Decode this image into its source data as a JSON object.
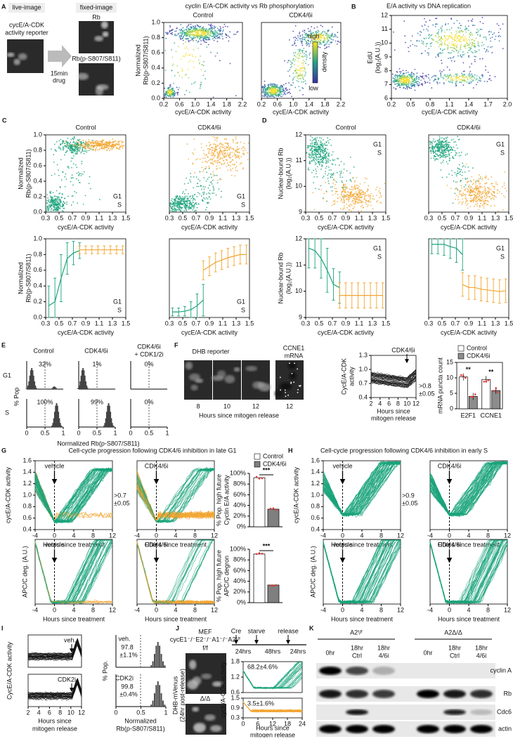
{
  "A": {
    "label": "A",
    "live": "live-image",
    "reporter": [
      "cycE/A-CDK",
      "activity reporter"
    ],
    "arrow": [
      "15min",
      "drug"
    ],
    "fixed": "fixed-image",
    "rb": "Rb",
    "prb": "Rb(p-S807/S811)",
    "title": "cyclin E/A-CDK activity vs Rb phosphorylation",
    "panels": [
      "Control",
      "CDK4/6i"
    ],
    "ylabel": [
      "Normalized",
      "Rb(p-S807/S811)"
    ],
    "yticks": [
      "0.0",
      "0.2",
      "0.4",
      "0.6",
      "0.8",
      "1.0"
    ],
    "xticks": [
      "0.2",
      "0.6",
      "1.0",
      "1.4",
      "1.8",
      "2.2"
    ],
    "xlabel": "cycE/A-CDK activity",
    "colorbar": [
      "high",
      "density",
      "low"
    ]
  },
  "B": {
    "label": "B",
    "title": "E/A activity vs DNA replication",
    "ylabel": [
      "EdU",
      "(log₂(A.U.))"
    ],
    "yticks": [
      "6",
      "7",
      "8",
      "9",
      "10",
      "11",
      "12"
    ],
    "xticks": [
      "0.2",
      "0.5",
      "0.8",
      "1.1",
      "1.4",
      "1.7",
      "2.0"
    ],
    "xlabel": "cycE/A-CDK activity"
  },
  "C": {
    "label": "C",
    "panels": [
      "Control",
      "CDK4/6i"
    ],
    "ylabel": [
      "Normalized",
      "Rb(p-S807/S811)"
    ],
    "yticks": [
      "0.0",
      "0.2",
      "0.4",
      "0.6",
      "0.8",
      "1.0"
    ],
    "xticks": [
      "0.3",
      "0.5",
      "0.7",
      "0.9",
      "1.1",
      "1.3",
      "1.5"
    ],
    "xlabel": "cycE/A-CDK activity",
    "legend": [
      "G1",
      "S"
    ]
  },
  "D": {
    "label": "D",
    "panels": [
      "Control",
      "CDK4/6i"
    ],
    "ylabel": [
      "Nuclear-bound Rb",
      "(log₂(A.U.))"
    ],
    "yticks": [
      "9",
      "10",
      "11",
      "12"
    ],
    "xticks": [
      "0.3",
      "0.5",
      "0.7",
      "0.9",
      "1.1",
      "1.3",
      "1.5"
    ],
    "xlabel": "cycE/A-CDK activity",
    "legend": [
      "G1",
      "S"
    ]
  },
  "E": {
    "label": "E",
    "columns": [
      "Control",
      "CDK4/6i"
    ],
    "col3": [
      "CDK4/6i",
      "+ CDK1/2i"
    ],
    "rows": [
      "G1",
      "S"
    ],
    "ylabel": "% Pop",
    "percents": [
      [
        "32%",
        "1%",
        "0%"
      ],
      [
        "100%",
        "99%",
        "0%"
      ]
    ],
    "xticks": [
      "0",
      "0.5",
      "1"
    ],
    "xlabel": "Normalized Rb(p-S807/S811)"
  },
  "F": {
    "label": "F",
    "dhb": "DHB reporter",
    "mrna": [
      "CCNE1",
      "mRNA"
    ],
    "times": [
      "8",
      "10",
      "12",
      "12"
    ],
    "xlabel": "Hours since mitogen release",
    "line": {
      "ylabel": [
        "CycE/A-CDK",
        "activity"
      ],
      "yticks": [
        "0.4",
        "0.7",
        "1.0",
        "1.3"
      ],
      "xticks": [
        "2",
        "4",
        "6",
        "8",
        "10",
        "12"
      ],
      "treat": "CDK4/6i",
      "threshold": [
        ">0.8",
        "±0.05"
      ],
      "xlabel": [
        "Hours since",
        "mitogen release"
      ]
    },
    "bars": {
      "type": "bar",
      "ylabel": "mRNA puncta count",
      "ylim": [
        0,
        15
      ],
      "yticks": [
        0,
        5,
        10,
        15
      ],
      "categories": [
        "E2F1",
        "CCNE1"
      ],
      "series": [
        {
          "name": "Control",
          "color": "#ffffff",
          "values": [
            10.3,
            9.5
          ]
        },
        {
          "name": "CDK4/6i",
          "color": "#8c8c8c",
          "values": [
            4,
            5.9
          ]
        }
      ],
      "significance": [
        "**",
        "**"
      ]
    }
  },
  "G": {
    "label": "G",
    "title": "Cell-cycle progression following CDK4/6 inhibition in late G1",
    "panels": [
      "vehicle",
      "CDK4/6i"
    ],
    "ylabel_top": "cycE/A-CDK activity",
    "yticks_top": [
      "0.4",
      "0.6",
      "0.8",
      "1.0",
      "1.2",
      "1.4",
      "1.6"
    ],
    "threshold": [
      ">0.7",
      "±0.05"
    ],
    "ylabel_bottom": "APC/C deg. (A.U.)",
    "xticks": [
      "-4",
      "0",
      "4",
      "8",
      "12"
    ],
    "xlabel": "Hours since treatment",
    "bar_legend": [
      "Control",
      "CDK4/6i"
    ],
    "bar_colors": [
      "#ffffff",
      "#7f7f7f"
    ],
    "bar_ylim": [
      0,
      100
    ],
    "bar_yticks": [
      {
        "value": 0,
        "label": "0%"
      },
      {
        "value": 20,
        "label": "20%"
      },
      {
        "value": 40,
        "label": "40%"
      },
      {
        "value": 60,
        "label": "60%"
      },
      {
        "value": 80,
        "label": "80%"
      },
      {
        "value": 100,
        "label": "100%"
      }
    ],
    "bar_charts": [
      {
        "ylabel": [
          "% Pop. high future",
          "Cyclin E/A activity"
        ],
        "values": [
          92,
          33
        ],
        "sig": "***"
      },
      {
        "ylabel": [
          "% Pop. high future",
          "APC/C degron"
        ],
        "values": [
          91,
          33
        ],
        "sig": "***"
      }
    ]
  },
  "H": {
    "label": "H",
    "title": "Cell-cycle progression following CDK4/6 inhibition in early S",
    "panels": [
      "vehicle",
      "CDK4/6i"
    ],
    "ylabel_top": "cycE/A-CDK activity",
    "yticks_top": [
      "0.4",
      "0.6",
      "0.8",
      "1.0",
      "1.2",
      "1.4",
      "1.6"
    ],
    "threshold": [
      ">0.9",
      "±0.05"
    ],
    "ylabel_bottom": "APC/C deg. (A.U.)",
    "xticks": [
      "-4",
      "0",
      "4",
      "8",
      "12"
    ],
    "xlabel": "Hours since treatment"
  },
  "I": {
    "label": "I",
    "ylabel": "CycE/A-CDK activity",
    "panels": [
      "veh.",
      "CDK2i"
    ],
    "xticks": [
      "2",
      "4",
      "6",
      "8",
      "10",
      "12"
    ],
    "xlabel": [
      "Hours since",
      "mitogen release"
    ],
    "hist": {
      "ylabel": "% Pop.",
      "stats": [
        [
          "97.8",
          "±1.1%"
        ],
        [
          "99.8",
          "±0.4%"
        ]
      ],
      "xticks": [
        "0",
        "0.5",
        "1"
      ],
      "xlabel": [
        "Normalized",
        "Rb(p-S807/S811)"
      ]
    }
  },
  "J": {
    "label": "J",
    "mef": "MEF",
    "genotype": "cycE1⁻/⁻E2⁻/⁻A1⁻/⁻A2ᶠ/ᶠ",
    "groups": [
      "f/f",
      "Δ/Δ"
    ],
    "ylabel_img": [
      "DHB-mVenus",
      "(24hr post-release)"
    ],
    "timeline": {
      "events": [
        "Cre",
        "starve",
        "release"
      ],
      "durations": [
        "24hrs",
        "48hrs",
        "24hrs"
      ]
    },
    "stats": [
      "68.2±4.6%",
      "3.5±1.6%"
    ],
    "ylabel": "cycE/A-CDK activity",
    "yticks_top": [
      "0.6",
      "1.2",
      "1.8"
    ],
    "yticks_bottom": [
      "0.3",
      "0.9",
      "1.5"
    ],
    "xticks": [
      "0",
      "6",
      "12",
      "18",
      "24"
    ],
    "xlabel": [
      "Hours since",
      "mitogen release"
    ]
  },
  "K": {
    "label": "K",
    "groups": [
      "A2ᶠ/ᶠ",
      "A2Δ/Δ"
    ],
    "lanes": [
      [
        "0hr"
      ],
      [
        "18hr",
        "Ctrl"
      ],
      [
        "18hr",
        "4/6i"
      ]
    ],
    "proteins": [
      "cyclin A",
      "Rb",
      "Cdc6",
      "actin"
    ]
  }
}
